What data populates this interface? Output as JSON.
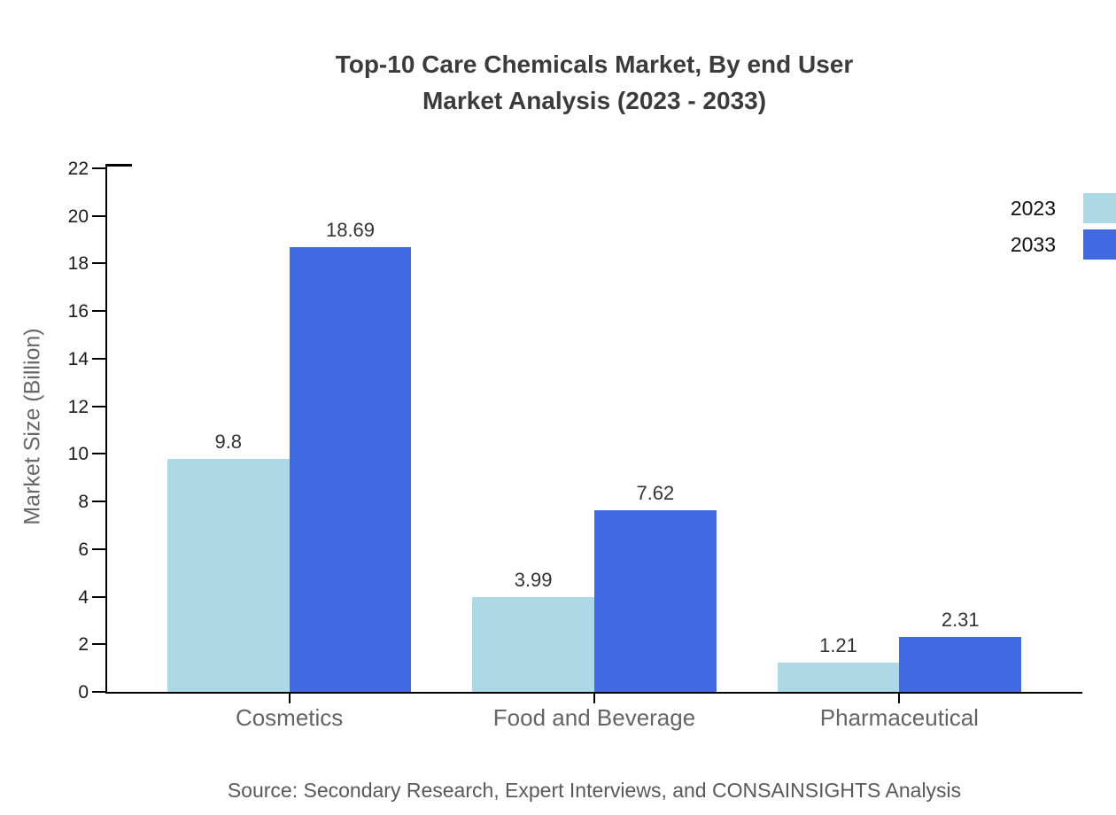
{
  "title": {
    "line1": "Top-10 Care Chemicals Market, By end User",
    "line2": "Market Analysis (2023 - 2033)"
  },
  "source": "Source: Secondary Research, Expert Interviews, and CONSAINSIGHTS Analysis",
  "chart_data": {
    "type": "bar",
    "title": "Top-10 Care Chemicals Market, By end User Market Analysis (2023 - 2033)",
    "categories": [
      "Cosmetics",
      "Food and Beverage",
      "Pharmaceutical"
    ],
    "series": [
      {
        "name": "2023",
        "color": "#ADD8E6",
        "values": [
          9.8,
          3.99,
          1.21
        ]
      },
      {
        "name": "2033",
        "color": "#4169E1",
        "values": [
          18.69,
          7.62,
          2.31
        ]
      }
    ],
    "xlabel": "",
    "ylabel": "Market Size (Billion)",
    "ylim": [
      0,
      22
    ],
    "ytick_step": 2,
    "grid": false,
    "legend_position": "top-right",
    "value_labels": {
      "Cosmetics": [
        "9.8",
        "18.69"
      ],
      "Food and Beverage": [
        "3.99",
        "7.62"
      ],
      "Pharmaceutical": [
        "1.21",
        "2.31"
      ]
    }
  }
}
